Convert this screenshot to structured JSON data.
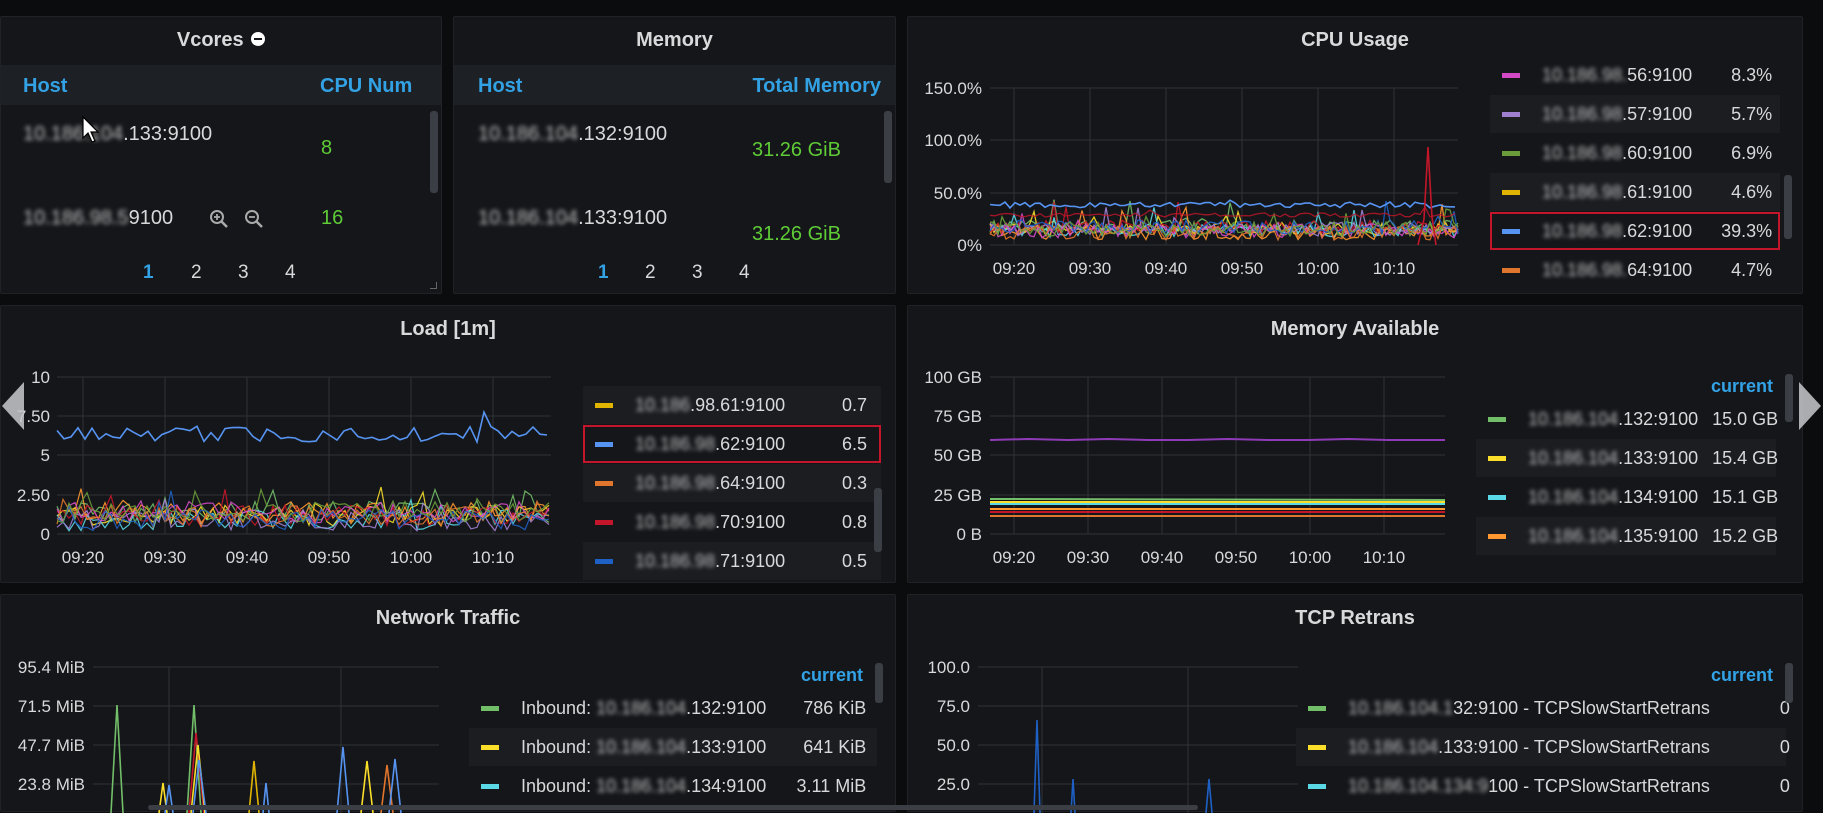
{
  "vcores": {
    "title": "Vcores",
    "col_host": "Host",
    "col_cpu": "CPU Num",
    "rows": [
      {
        "host_hidden": "10.186.104",
        "host_suffix": ".133:9100",
        "value": "8"
      },
      {
        "host_hidden": "10.186.98.5",
        "host_suffix": "9100",
        "value": "16"
      }
    ],
    "pages": [
      "1",
      "2",
      "3",
      "4"
    ],
    "active_page": "1"
  },
  "memory": {
    "title": "Memory",
    "col_host": "Host",
    "col_total": "Total Memory",
    "rows": [
      {
        "host_hidden": "10.186.104",
        "host_suffix": ".132:9100",
        "value": "31.26 GiB"
      },
      {
        "host_hidden": "10.186.104",
        "host_suffix": ".133:9100",
        "value": "31.26 GiB"
      }
    ],
    "pages": [
      "1",
      "2",
      "3",
      "4"
    ],
    "active_page": "1"
  },
  "cpu_usage": {
    "title": "CPU Usage",
    "yticks": [
      "150.0%",
      "100.0%",
      "50.0%",
      "0%"
    ],
    "xticks": [
      "09:20",
      "09:30",
      "09:40",
      "09:50",
      "10:00",
      "10:10"
    ],
    "legend": [
      {
        "hidden": "10.186.98.",
        "suffix": "56:9100",
        "value": "8.3%",
        "color": "#d44ac6"
      },
      {
        "hidden": "10.186.98",
        "suffix": ".57:9100",
        "value": "5.7%",
        "color": "#a07fd1"
      },
      {
        "hidden": "10.186.98",
        "suffix": ".60:9100",
        "value": "6.9%",
        "color": "#6a9d3a"
      },
      {
        "hidden": "10.186.98",
        "suffix": ".61:9100",
        "value": "4.6%",
        "color": "#e0b400"
      },
      {
        "hidden": "10.186.98",
        "suffix": ".62:9100",
        "value": "39.3%",
        "color": "#5794f2"
      },
      {
        "hidden": "10.186.98.",
        "suffix": "64:9100",
        "value": "4.7%",
        "color": "#e0752d"
      }
    ]
  },
  "load": {
    "title": "Load [1m]",
    "yticks": [
      "10",
      "7.50",
      "5",
      "2.50",
      "0"
    ],
    "xticks": [
      "09:20",
      "09:30",
      "09:40",
      "09:50",
      "10:00",
      "10:10"
    ],
    "legend": [
      {
        "hidden": "10.186",
        "suffix": ".98.61:9100",
        "value": "0.7",
        "color": "#e0b400"
      },
      {
        "hidden": "10.186.98",
        "suffix": ".62:9100",
        "value": "6.5",
        "color": "#5794f2"
      },
      {
        "hidden": "10.186.98",
        "suffix": ".64:9100",
        "value": "0.3",
        "color": "#e0752d"
      },
      {
        "hidden": "10.186.98",
        "suffix": ".70:9100",
        "value": "0.8",
        "color": "#c4162a"
      },
      {
        "hidden": "10.186.98",
        "suffix": ".71:9100",
        "value": "0.5",
        "color": "#1f60c4"
      }
    ]
  },
  "mem_avail": {
    "title": "Memory Available",
    "yticks": [
      "100 GB",
      "75 GB",
      "50 GB",
      "25 GB",
      "0 B"
    ],
    "xticks": [
      "09:20",
      "09:30",
      "09:40",
      "09:50",
      "10:00",
      "10:10"
    ],
    "legend_header": "current",
    "legend": [
      {
        "hidden": "10.186.104",
        "suffix": ".132:9100",
        "value": "15.0 GB",
        "color": "#73bf69"
      },
      {
        "hidden": "10.186.104",
        "suffix": ".133:9100",
        "value": "15.4 GB",
        "color": "#fade2a"
      },
      {
        "hidden": "10.186.104",
        "suffix": ".134:9100",
        "value": "15.1 GB",
        "color": "#5ad8e6"
      },
      {
        "hidden": "10.186.104",
        "suffix": ".135:9100",
        "value": "15.2 GB",
        "color": "#ff9830"
      }
    ]
  },
  "network": {
    "title": "Network Traffic",
    "yticks": [
      "95.4 MiB",
      "71.5 MiB",
      "47.7 MiB",
      "23.8 MiB"
    ],
    "legend_header": "current",
    "legend": [
      {
        "prefix": "Inbound: ",
        "hidden": "10.186.104",
        "suffix": ".132:9100",
        "value": "786 KiB",
        "color": "#73bf69"
      },
      {
        "prefix": "Inbound: ",
        "hidden": "10.186.104",
        "suffix": ".133:9100",
        "value": "641 KiB",
        "color": "#fade2a"
      },
      {
        "prefix": "Inbound: ",
        "hidden": "10.186.104",
        "suffix": ".134:9100",
        "value": "3.11 MiB",
        "color": "#5ad8e6"
      }
    ]
  },
  "tcp": {
    "title": "TCP Retrans",
    "yticks": [
      "100.0",
      "75.0",
      "50.0",
      "25.0"
    ],
    "legend_header": "current",
    "legend": [
      {
        "hidden": "10.186.104.1",
        "suffix": "32:9100 - TCPSlowStartRetrans",
        "value": "0",
        "color": "#73bf69"
      },
      {
        "hidden": "10.186.104",
        "suffix": ".133:9100 - TCPSlowStartRetrans",
        "value": "0",
        "color": "#fade2a"
      },
      {
        "hidden": "10.186.104.134:9",
        "suffix": "100 - TCPSlowStartRetrans",
        "value": "0",
        "color": "#5ad8e6"
      }
    ]
  },
  "colors": {
    "accent": "#33a2e5",
    "value_green": "#5ecb37",
    "selection": "#c4162a"
  }
}
